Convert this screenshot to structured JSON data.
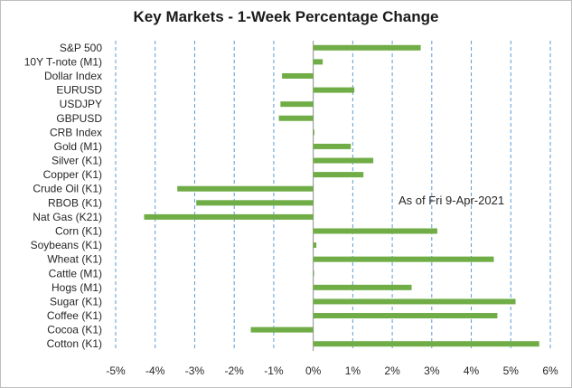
{
  "chart_data": {
    "type": "bar",
    "orientation": "horizontal",
    "title": "Key Markets - 1-Week Percentage Change",
    "xlabel": "",
    "ylabel": "",
    "xlim": [
      -5,
      6
    ],
    "xticks": [
      -5,
      -4,
      -3,
      -2,
      -1,
      0,
      1,
      2,
      3,
      4,
      5,
      6
    ],
    "xtick_labels": [
      "-5%",
      "-4%",
      "-3%",
      "-2%",
      "-1%",
      "0%",
      "1%",
      "2%",
      "3%",
      "4%",
      "5%",
      "6%"
    ],
    "grid": "vertical dashed",
    "bar_color": "#70ad47",
    "gridline_color": "#5b9bd5",
    "annotation": "As of Fri 9-Apr-2021",
    "categories": [
      "S&P 500",
      "10Y T-note (M1)",
      "Dollar Index",
      "EURUSD",
      "USDJPY",
      "GBPUSD",
      "CRB Index",
      "Gold (M1)",
      "Silver (K1)",
      "Copper (K1)",
      "Crude Oil (K1)",
      "RBOB (K1)",
      "Nat Gas (K21)",
      "Corn (K1)",
      "Soybeans (K1)",
      "Wheat (K1)",
      "Cattle (M1)",
      "Hogs (M1)",
      "Sugar (K1)",
      "Coffee (K1)",
      "Cocoa (K1)",
      "Cotton (K1)"
    ],
    "values": [
      2.72,
      0.24,
      -0.79,
      1.04,
      -0.83,
      -0.87,
      0.03,
      0.95,
      1.52,
      1.27,
      -3.44,
      -2.96,
      -4.28,
      3.14,
      0.08,
      4.57,
      0.02,
      2.49,
      5.12,
      4.66,
      -1.58,
      5.72
    ]
  }
}
